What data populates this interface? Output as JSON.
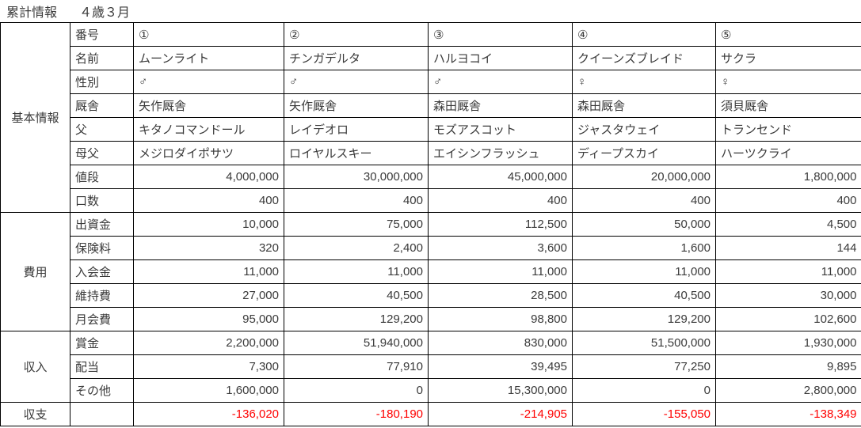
{
  "header": {
    "title": "累計情報",
    "subtitle": "４歳３月"
  },
  "colors": {
    "cell_green": "#92D050",
    "cell_white": "#FFFFFF",
    "negative_text": "#FF0000",
    "border": "#000000"
  },
  "table": {
    "green_column_indexes": [
      0,
      2,
      4
    ],
    "groups": [
      {
        "key": "basic-info",
        "label": "基本情報",
        "rows": [
          {
            "label": "番号",
            "align": "left",
            "values": [
              "①",
              "②",
              "③",
              "④",
              "⑤"
            ]
          },
          {
            "label": "名前",
            "align": "left",
            "values": [
              "ムーンライト",
              "チンガデルタ",
              "ハルヨコイ",
              "クイーンズブレイド",
              "サクラ"
            ]
          },
          {
            "label": "性別",
            "align": "left",
            "values": [
              "♂",
              "♂",
              "♂",
              "♀",
              "♀"
            ]
          },
          {
            "label": "厩舎",
            "align": "left",
            "values": [
              "矢作厩舎",
              "矢作厩舎",
              "森田厩舎",
              "森田厩舎",
              "須貝厩舎"
            ]
          },
          {
            "label": "父",
            "align": "left",
            "values": [
              "キタノコマンドール",
              "レイデオロ",
              "モズアスコット",
              "ジャスタウェイ",
              "トランセンド"
            ]
          },
          {
            "label": "母父",
            "align": "left",
            "values": [
              "メジロダイポサツ",
              "ロイヤルスキー",
              "エイシンフラッシュ",
              "ディープスカイ",
              "ハーツクライ"
            ]
          },
          {
            "label": "値段",
            "align": "right",
            "values": [
              "4,000,000",
              "30,000,000",
              "45,000,000",
              "20,000,000",
              "1,800,000"
            ]
          },
          {
            "label": "口数",
            "align": "right",
            "values": [
              "400",
              "400",
              "400",
              "400",
              "400"
            ]
          }
        ]
      },
      {
        "key": "expenses",
        "label": "費用",
        "rows": [
          {
            "label": "出資金",
            "align": "right",
            "values": [
              "10,000",
              "75,000",
              "112,500",
              "50,000",
              "4,500"
            ]
          },
          {
            "label": "保険料",
            "align": "right",
            "values": [
              "320",
              "2,400",
              "3,600",
              "1,600",
              "144"
            ]
          },
          {
            "label": "入会金",
            "align": "right",
            "values": [
              "11,000",
              "11,000",
              "11,000",
              "11,000",
              "11,000"
            ]
          },
          {
            "label": "維持費",
            "align": "right",
            "values": [
              "27,000",
              "40,500",
              "28,500",
              "40,500",
              "30,000"
            ]
          },
          {
            "label": "月会費",
            "align": "right",
            "values": [
              "95,000",
              "129,200",
              "98,800",
              "129,200",
              "102,600"
            ]
          }
        ]
      },
      {
        "key": "income",
        "label": "収入",
        "rows": [
          {
            "label": "賞金",
            "align": "right",
            "values": [
              "2,200,000",
              "51,940,000",
              "830,000",
              "51,500,000",
              "1,930,000"
            ]
          },
          {
            "label": "配当",
            "align": "right",
            "values": [
              "7,300",
              "77,910",
              "39,495",
              "77,250",
              "9,895"
            ]
          },
          {
            "label": "その他",
            "align": "right",
            "values": [
              "1,600,000",
              "0",
              "15,300,000",
              "0",
              "2,800,000"
            ]
          }
        ]
      },
      {
        "key": "balance",
        "label": "収支",
        "rows": [
          {
            "label": "",
            "align": "right",
            "negative": true,
            "values": [
              "-136,020",
              "-180,190",
              "-214,905",
              "-155,050",
              "-138,349"
            ]
          }
        ]
      }
    ]
  }
}
